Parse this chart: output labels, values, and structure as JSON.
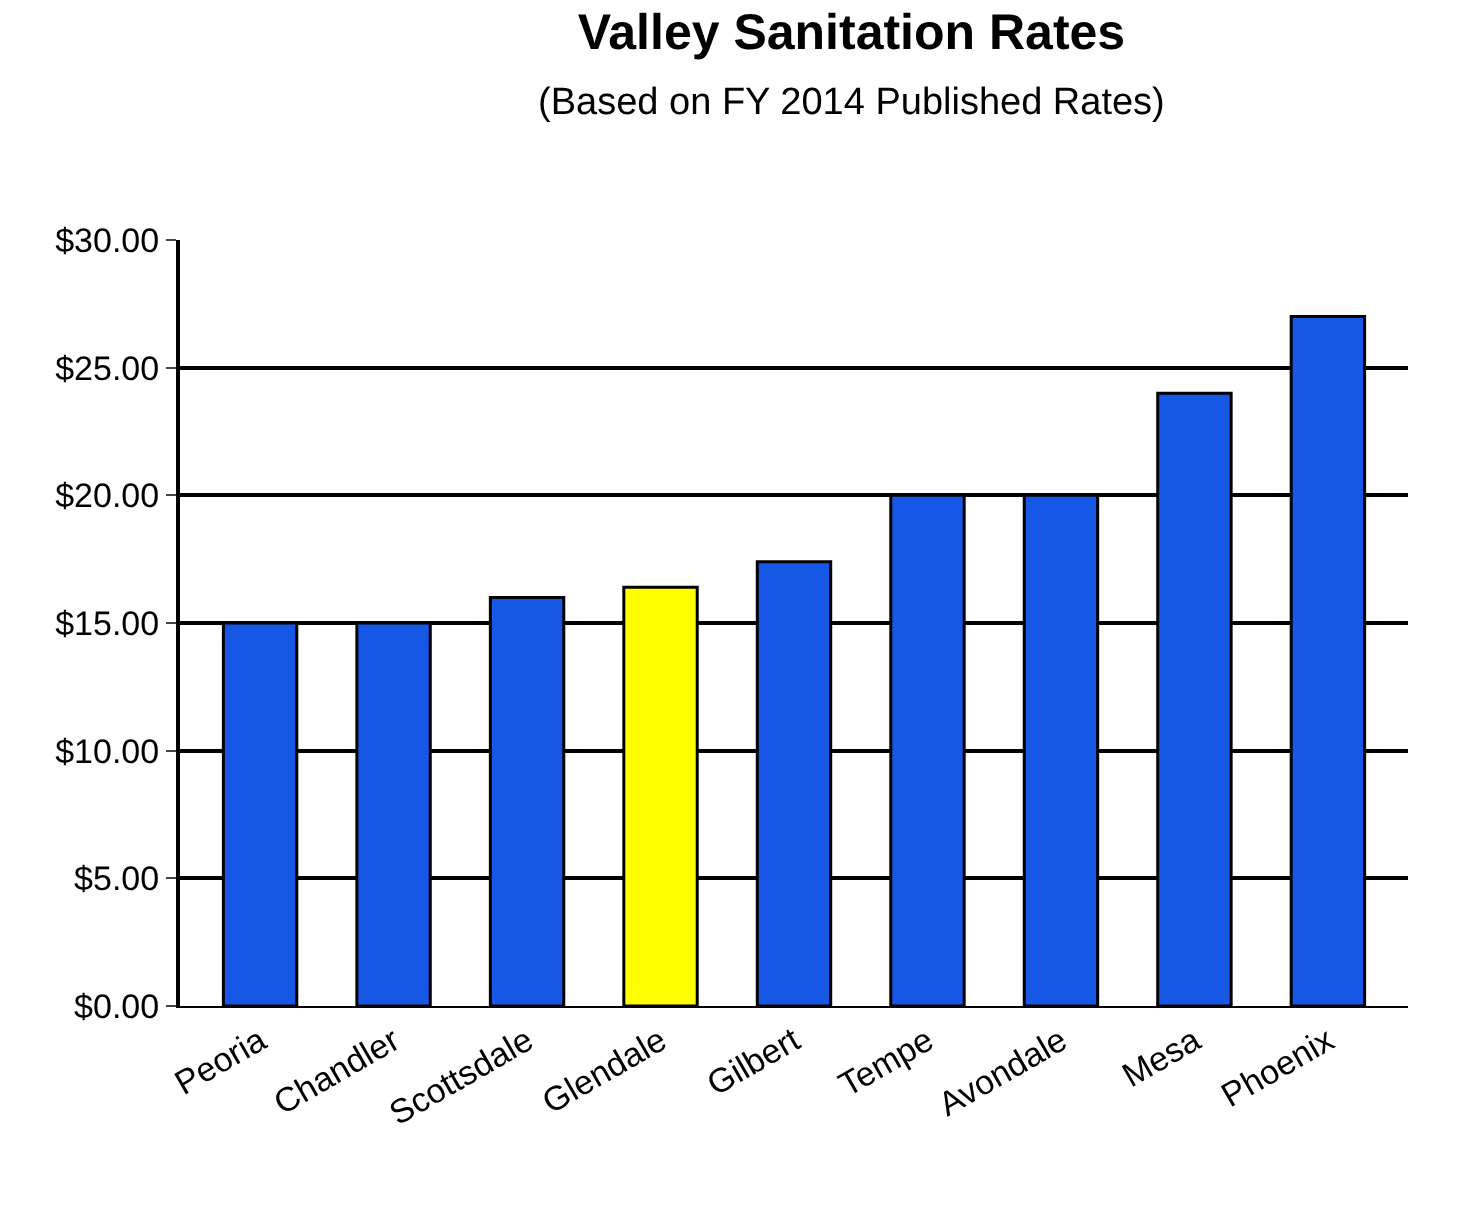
{
  "chart_data": {
    "type": "bar",
    "title": "Valley Sanitation Rates",
    "subtitle": "(Based on FY 2014 Published Rates)",
    "categories": [
      "Peoria",
      "Chandler",
      "Scottsdale",
      "Glendale",
      "Gilbert",
      "Tempe",
      "Avondale",
      "Mesa",
      "Phoenix"
    ],
    "values": [
      15.0,
      15.0,
      16.0,
      16.4,
      17.4,
      20.0,
      20.0,
      24.0,
      27.0
    ],
    "colors": [
      "#1757e6",
      "#1757e6",
      "#1757e6",
      "#ffff00",
      "#1757e6",
      "#1757e6",
      "#1757e6",
      "#1757e6",
      "#1757e6"
    ],
    "ylim": [
      0,
      30
    ],
    "yticks": [
      {
        "value": 0,
        "label": "$0.00"
      },
      {
        "value": 5,
        "label": "$5.00"
      },
      {
        "value": 10,
        "label": "$10.00"
      },
      {
        "value": 15,
        "label": "$15.00"
      },
      {
        "value": 20,
        "label": "$20.00"
      },
      {
        "value": 25,
        "label": "$25.00"
      },
      {
        "value": 30,
        "label": "$30.00"
      }
    ],
    "grid": "y",
    "legend": false
  }
}
